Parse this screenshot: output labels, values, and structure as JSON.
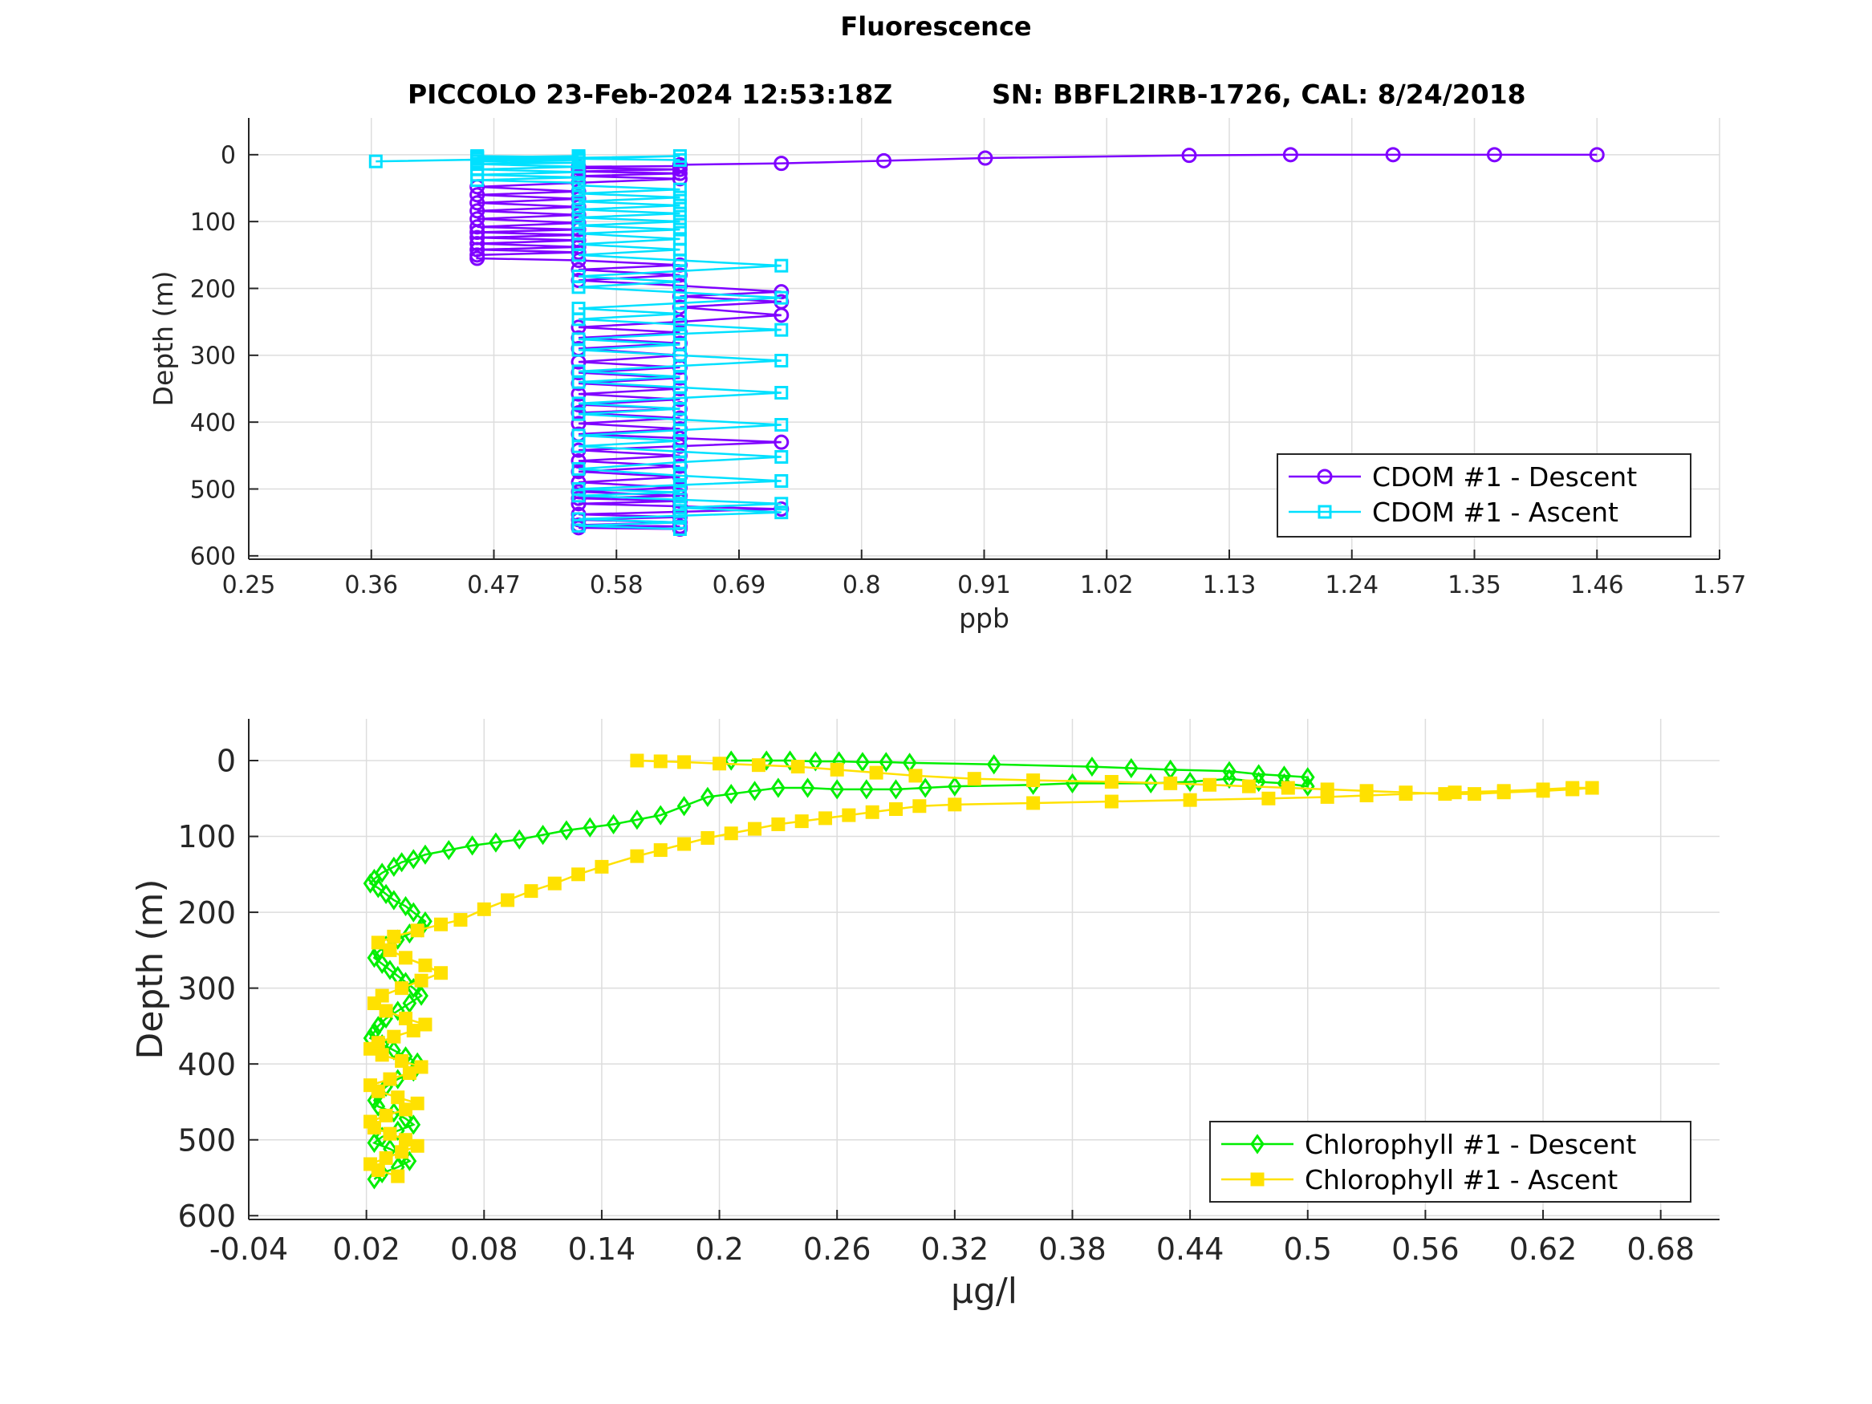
{
  "figure": {
    "title": "Fluorescence",
    "subtitle_left": "PICCOLO 23-Feb-2024 12:53:18Z",
    "subtitle_right": "SN: BBFL2IRB-1726, CAL: 8/24/2018"
  },
  "chart_data": [
    {
      "type": "line",
      "title": "PICCOLO 23-Feb-2024 12:53:18Z        SN: BBFL2IRB-1726, CAL: 8/24/2018",
      "xlabel": "ppb",
      "ylabel": "Depth (m)",
      "xlim": [
        0.25,
        1.57
      ],
      "ylim": [
        -55,
        605
      ],
      "y_reversed": true,
      "xticks": [
        "0.25",
        "0.36",
        "0.47",
        "0.58",
        "0.69",
        "0.8",
        "0.91",
        "1.02",
        "1.13",
        "1.24",
        "1.35",
        "1.46",
        "1.57"
      ],
      "yticks": [
        "0",
        "100",
        "200",
        "300",
        "400",
        "500",
        "600"
      ],
      "grid": true,
      "legend_position": "bottom-right",
      "series": [
        {
          "name": "CDOM #1 - Descent",
          "color": "#7f00ff",
          "marker": "circle",
          "x": [
            1.46,
            1.368,
            1.277,
            1.185,
            1.094,
            0.911,
            0.82,
            0.728,
            0.637,
            0.637,
            0.637,
            0.546,
            0.546,
            0.637,
            0.546,
            0.637,
            0.546,
            0.637,
            0.546,
            0.455,
            0.546,
            0.455,
            0.546,
            0.455,
            0.546,
            0.455,
            0.546,
            0.455,
            0.546,
            0.455,
            0.546,
            0.455,
            0.546,
            0.455,
            0.546,
            0.455,
            0.546,
            0.455,
            0.546,
            0.455,
            0.455,
            0.546,
            0.637,
            0.546,
            0.637,
            0.546,
            0.637,
            0.728,
            0.637,
            0.728,
            0.637,
            0.728,
            0.637,
            0.546,
            0.637,
            0.546,
            0.637,
            0.546,
            0.637,
            0.546,
            0.637,
            0.546,
            0.637,
            0.546,
            0.637,
            0.546,
            0.637,
            0.546,
            0.637,
            0.546,
            0.637,
            0.546,
            0.637,
            0.546,
            0.637,
            0.728,
            0.637,
            0.546,
            0.637,
            0.546,
            0.637,
            0.546,
            0.637,
            0.546,
            0.637,
            0.546,
            0.637,
            0.546,
            0.637,
            0.546,
            0.637,
            0.728,
            0.637,
            0.546,
            0.637,
            0.546,
            0.637,
            0.546,
            0.637,
            0.546,
            0.637
          ],
          "y": [
            0,
            0,
            0,
            0,
            1,
            5,
            9,
            13,
            15,
            16,
            17,
            18,
            20,
            22,
            25,
            28,
            32,
            36,
            42,
            48,
            55,
            60,
            66,
            72,
            78,
            84,
            90,
            96,
            102,
            108,
            112,
            116,
            120,
            124,
            128,
            133,
            138,
            142,
            146,
            150,
            155,
            158,
            165,
            172,
            180,
            188,
            196,
            205,
            212,
            220,
            228,
            240,
            250,
            258,
            266,
            274,
            282,
            290,
            300,
            310,
            318,
            326,
            334,
            342,
            350,
            358,
            366,
            374,
            380,
            386,
            394,
            402,
            410,
            418,
            424,
            430,
            436,
            442,
            450,
            458,
            466,
            474,
            482,
            490,
            498,
            504,
            510,
            514,
            518,
            522,
            526,
            530,
            534,
            538,
            542,
            546,
            550,
            554,
            556,
            558,
            560
          ]
        },
        {
          "name": "CDOM #1 - Ascent",
          "color": "#00e0ff",
          "marker": "square",
          "x": [
            0.637,
            0.546,
            0.637,
            0.546,
            0.637,
            0.728,
            0.637,
            0.728,
            0.637,
            0.546,
            0.637,
            0.546,
            0.637,
            0.728,
            0.637,
            0.546,
            0.637,
            0.728,
            0.637,
            0.546,
            0.637,
            0.546,
            0.637,
            0.728,
            0.637,
            0.546,
            0.637,
            0.546,
            0.637,
            0.728,
            0.637,
            0.546,
            0.637,
            0.546,
            0.637,
            0.728,
            0.637,
            0.546,
            0.637,
            0.546,
            0.637,
            0.728,
            0.637,
            0.546,
            0.637,
            0.546,
            0.637,
            0.728,
            0.637,
            0.546,
            0.637,
            0.546,
            0.637,
            0.728,
            0.637,
            0.546,
            0.637,
            0.546,
            0.637,
            0.546,
            0.637,
            0.546,
            0.637,
            0.546,
            0.637,
            0.546,
            0.637,
            0.546,
            0.637,
            0.546,
            0.637,
            0.546,
            0.546,
            0.455,
            0.546,
            0.455,
            0.546,
            0.455,
            0.546,
            0.455,
            0.546,
            0.455,
            0.546,
            0.455,
            0.546,
            0.455,
            0.546,
            0.455,
            0.546,
            0.455,
            0.546,
            0.455,
            0.546,
            0.455,
            0.546,
            0.637,
            0.546,
            0.455,
            0.546,
            0.455,
            0.546,
            0.637,
            0.364
          ],
          "y": [
            560,
            555,
            550,
            545,
            540,
            535,
            528,
            522,
            516,
            510,
            505,
            500,
            494,
            488,
            480,
            470,
            460,
            452,
            444,
            436,
            428,
            420,
            412,
            404,
            396,
            388,
            380,
            372,
            364,
            356,
            348,
            340,
            332,
            324,
            316,
            308,
            300,
            292,
            284,
            276,
            268,
            262,
            254,
            246,
            238,
            230,
            222,
            214,
            206,
            198,
            190,
            182,
            174,
            166,
            158,
            150,
            142,
            134,
            126,
            118,
            112,
            106,
            100,
            94,
            88,
            82,
            76,
            70,
            64,
            58,
            52,
            46,
            42,
            38,
            34,
            30,
            26,
            22,
            18,
            14,
            12,
            10,
            8,
            6,
            4,
            2,
            4,
            6,
            8,
            10,
            6,
            4,
            2,
            4,
            6,
            8,
            6,
            4,
            2,
            4,
            6,
            2,
            10
          ]
        }
      ]
    },
    {
      "type": "line",
      "title": "",
      "xlabel": "μg/l",
      "ylabel": "Depth (m)",
      "xlim": [
        -0.04,
        0.71
      ],
      "ylim": [
        -55,
        605
      ],
      "y_reversed": true,
      "xticks": [
        "-0.04",
        "0.02",
        "0.08",
        "0.14",
        "0.2",
        "0.26",
        "0.32",
        "0.38",
        "0.44",
        "0.5",
        "0.56",
        "0.62",
        "0.68"
      ],
      "yticks": [
        "0",
        "100",
        "200",
        "300",
        "400",
        "500",
        "600"
      ],
      "grid": true,
      "legend_position": "bottom-right",
      "series": [
        {
          "name": "Chlorophyll #1 - Descent",
          "color": "#00ee00",
          "marker": "diamond",
          "x": [
            0.206,
            0.224,
            0.236,
            0.249,
            0.261,
            0.273,
            0.285,
            0.297,
            0.34,
            0.39,
            0.41,
            0.43,
            0.46,
            0.475,
            0.488,
            0.5,
            0.5,
            0.488,
            0.475,
            0.46,
            0.44,
            0.42,
            0.38,
            0.36,
            0.32,
            0.305,
            0.29,
            0.275,
            0.26,
            0.245,
            0.23,
            0.218,
            0.206,
            0.194,
            0.182,
            0.17,
            0.158,
            0.146,
            0.134,
            0.122,
            0.11,
            0.098,
            0.086,
            0.074,
            0.062,
            0.05,
            0.044,
            0.038,
            0.034,
            0.028,
            0.024,
            0.022,
            0.026,
            0.03,
            0.034,
            0.04,
            0.044,
            0.05,
            0.048,
            0.042,
            0.036,
            0.03,
            0.026,
            0.024,
            0.028,
            0.032,
            0.036,
            0.04,
            0.044,
            0.048,
            0.042,
            0.036,
            0.03,
            0.026,
            0.024,
            0.022,
            0.028,
            0.034,
            0.04,
            0.046,
            0.044,
            0.036,
            0.03,
            0.026,
            0.024,
            0.026,
            0.034,
            0.04,
            0.044,
            0.036,
            0.028,
            0.024,
            0.032,
            0.038,
            0.042,
            0.036,
            0.028,
            0.024
          ],
          "y": [
            0,
            0,
            0,
            1,
            1,
            2,
            2,
            3,
            5,
            8,
            10,
            12,
            14,
            18,
            20,
            22,
            34,
            30,
            28,
            24,
            28,
            30,
            30,
            32,
            34,
            36,
            38,
            38,
            38,
            36,
            36,
            40,
            44,
            48,
            60,
            72,
            78,
            84,
            88,
            92,
            98,
            104,
            108,
            112,
            118,
            124,
            130,
            134,
            140,
            148,
            156,
            162,
            168,
            176,
            184,
            192,
            200,
            212,
            220,
            228,
            236,
            244,
            252,
            260,
            268,
            276,
            284,
            292,
            300,
            310,
            320,
            330,
            340,
            350,
            358,
            366,
            374,
            382,
            390,
            398,
            410,
            420,
            430,
            440,
            448,
            456,
            464,
            472,
            480,
            488,
            496,
            504,
            512,
            520,
            528,
            536,
            544,
            552
          ]
        },
        {
          "name": "Chlorophyll #1 - Ascent",
          "color": "#ffe100",
          "marker": "square",
          "x": [
            0.036,
            0.026,
            0.022,
            0.03,
            0.038,
            0.046,
            0.04,
            0.032,
            0.024,
            0.022,
            0.03,
            0.04,
            0.046,
            0.036,
            0.026,
            0.022,
            0.032,
            0.042,
            0.048,
            0.038,
            0.028,
            0.022,
            0.026,
            0.034,
            0.044,
            0.05,
            0.04,
            0.03,
            0.024,
            0.028,
            0.038,
            0.048,
            0.058,
            0.05,
            0.04,
            0.032,
            0.026,
            0.034,
            0.046,
            0.058,
            0.068,
            0.08,
            0.092,
            0.104,
            0.116,
            0.128,
            0.14,
            0.158,
            0.17,
            0.182,
            0.194,
            0.206,
            0.218,
            0.23,
            0.242,
            0.254,
            0.266,
            0.278,
            0.29,
            0.302,
            0.32,
            0.36,
            0.4,
            0.44,
            0.48,
            0.51,
            0.53,
            0.55,
            0.575,
            0.6,
            0.62,
            0.635,
            0.645,
            0.635,
            0.62,
            0.6,
            0.585,
            0.57,
            0.55,
            0.53,
            0.51,
            0.49,
            0.47,
            0.45,
            0.43,
            0.4,
            0.36,
            0.33,
            0.3,
            0.28,
            0.26,
            0.24,
            0.22,
            0.2,
            0.182,
            0.17,
            0.158
          ],
          "y": [
            548,
            540,
            532,
            524,
            516,
            508,
            500,
            492,
            484,
            476,
            468,
            460,
            452,
            444,
            436,
            428,
            420,
            412,
            404,
            396,
            388,
            380,
            372,
            364,
            356,
            348,
            340,
            330,
            320,
            310,
            300,
            290,
            280,
            270,
            260,
            250,
            240,
            232,
            224,
            216,
            210,
            196,
            184,
            172,
            162,
            150,
            140,
            126,
            118,
            110,
            102,
            96,
            90,
            84,
            80,
            76,
            72,
            68,
            64,
            60,
            58,
            56,
            54,
            52,
            50,
            48,
            46,
            44,
            42,
            40,
            38,
            36,
            36,
            38,
            40,
            42,
            44,
            44,
            42,
            40,
            38,
            36,
            34,
            32,
            30,
            28,
            26,
            24,
            20,
            16,
            12,
            8,
            6,
            4,
            2,
            1,
            0
          ]
        }
      ]
    }
  ]
}
